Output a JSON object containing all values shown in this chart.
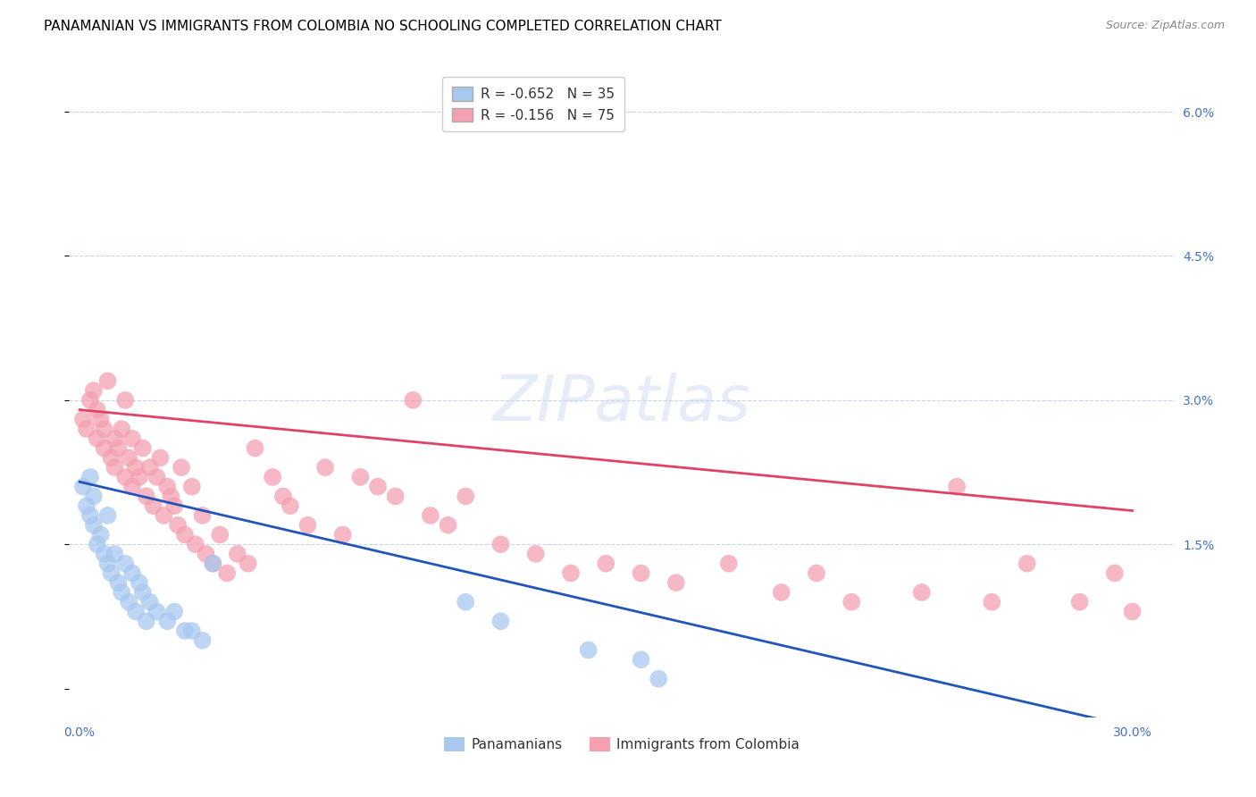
{
  "title": "PANAMANIAN VS IMMIGRANTS FROM COLOMBIA NO SCHOOLING COMPLETED CORRELATION CHART",
  "source": "Source: ZipAtlas.com",
  "xmin": -0.003,
  "xmax": 0.312,
  "ymin": -0.003,
  "ymax": 0.065,
  "blue_R": -0.652,
  "blue_N": 35,
  "pink_R": -0.156,
  "pink_N": 75,
  "blue_color": "#a8c8f0",
  "pink_color": "#f4a0b0",
  "blue_line_color": "#2255bb",
  "pink_line_color": "#dd4466",
  "legend_blue_label": "Panamanians",
  "legend_pink_label": "Immigrants from Colombia",
  "axis_color": "#4472c4",
  "grid_color": "#c8d4e8",
  "title_fontsize": 11,
  "source_fontsize": 9,
  "tick_fontsize": 10,
  "legend_fontsize": 11,
  "blue_trend_x0": 0.0,
  "blue_trend_y0": 0.0215,
  "blue_trend_x1": 0.3,
  "blue_trend_y1": -0.004,
  "pink_trend_x0": 0.0,
  "pink_trend_y0": 0.029,
  "pink_trend_x1": 0.3,
  "pink_trend_y1": 0.0185,
  "blue_points_x": [
    0.001,
    0.002,
    0.003,
    0.003,
    0.004,
    0.004,
    0.005,
    0.006,
    0.007,
    0.008,
    0.008,
    0.009,
    0.01,
    0.011,
    0.012,
    0.013,
    0.014,
    0.015,
    0.016,
    0.017,
    0.018,
    0.019,
    0.02,
    0.022,
    0.025,
    0.027,
    0.03,
    0.032,
    0.035,
    0.038,
    0.11,
    0.12,
    0.145,
    0.16,
    0.165
  ],
  "blue_points_y": [
    0.021,
    0.019,
    0.018,
    0.022,
    0.017,
    0.02,
    0.015,
    0.016,
    0.014,
    0.013,
    0.018,
    0.012,
    0.014,
    0.011,
    0.01,
    0.013,
    0.009,
    0.012,
    0.008,
    0.011,
    0.01,
    0.007,
    0.009,
    0.008,
    0.007,
    0.008,
    0.006,
    0.006,
    0.005,
    0.013,
    0.009,
    0.007,
    0.004,
    0.003,
    0.001
  ],
  "pink_points_x": [
    0.001,
    0.002,
    0.003,
    0.004,
    0.005,
    0.005,
    0.006,
    0.007,
    0.007,
    0.008,
    0.009,
    0.01,
    0.01,
    0.011,
    0.012,
    0.013,
    0.013,
    0.014,
    0.015,
    0.015,
    0.016,
    0.017,
    0.018,
    0.019,
    0.02,
    0.021,
    0.022,
    0.023,
    0.024,
    0.025,
    0.026,
    0.027,
    0.028,
    0.029,
    0.03,
    0.032,
    0.033,
    0.035,
    0.036,
    0.038,
    0.04,
    0.042,
    0.045,
    0.048,
    0.05,
    0.055,
    0.058,
    0.06,
    0.065,
    0.07,
    0.075,
    0.08,
    0.085,
    0.09,
    0.095,
    0.1,
    0.105,
    0.11,
    0.12,
    0.13,
    0.14,
    0.15,
    0.16,
    0.17,
    0.185,
    0.2,
    0.21,
    0.22,
    0.24,
    0.25,
    0.26,
    0.27,
    0.285,
    0.295,
    0.3
  ],
  "pink_points_y": [
    0.028,
    0.027,
    0.03,
    0.031,
    0.029,
    0.026,
    0.028,
    0.025,
    0.027,
    0.032,
    0.024,
    0.026,
    0.023,
    0.025,
    0.027,
    0.022,
    0.03,
    0.024,
    0.021,
    0.026,
    0.023,
    0.022,
    0.025,
    0.02,
    0.023,
    0.019,
    0.022,
    0.024,
    0.018,
    0.021,
    0.02,
    0.019,
    0.017,
    0.023,
    0.016,
    0.021,
    0.015,
    0.018,
    0.014,
    0.013,
    0.016,
    0.012,
    0.014,
    0.013,
    0.025,
    0.022,
    0.02,
    0.019,
    0.017,
    0.023,
    0.016,
    0.022,
    0.021,
    0.02,
    0.03,
    0.018,
    0.017,
    0.02,
    0.015,
    0.014,
    0.012,
    0.013,
    0.012,
    0.011,
    0.013,
    0.01,
    0.012,
    0.009,
    0.01,
    0.021,
    0.009,
    0.013,
    0.009,
    0.012,
    0.008
  ]
}
